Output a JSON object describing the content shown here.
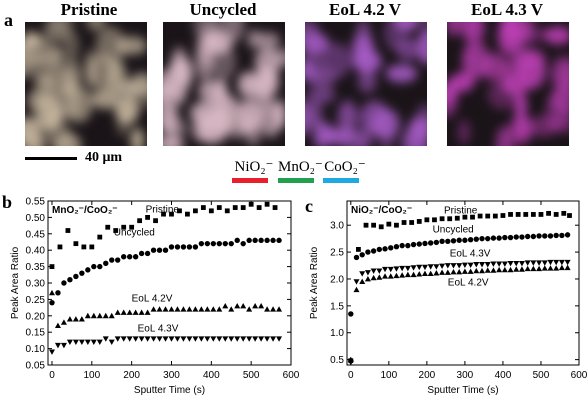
{
  "panel_a": {
    "letter": "a",
    "images": [
      {
        "title": "Pristine",
        "tint": "#c8b8a0"
      },
      {
        "title": "Uncycled",
        "tint": "#d8b8c4"
      },
      {
        "title": "EoL 4.2 V",
        "tint": "#a85cc8"
      },
      {
        "title": "EoL 4.3 V",
        "tint": "#c040b8"
      }
    ],
    "scale_label": "40 μm",
    "legend": [
      {
        "label": "NiO₂⁻",
        "color": "#e8202c"
      },
      {
        "label": "MnO₂⁻",
        "color": "#20a050"
      },
      {
        "label": "CoO₂⁻",
        "color": "#20a8e0"
      }
    ]
  },
  "chart_data": [
    {
      "type": "scatter",
      "panel": "b",
      "title": "MnO₂⁻/CoO₂⁻",
      "xlabel": "Sputter Time (s)",
      "ylabel": "Peak Area Ratio",
      "xlim": [
        -10,
        600
      ],
      "ylim": [
        0.05,
        0.55
      ],
      "xticks": [
        0,
        100,
        200,
        300,
        400,
        500,
        600
      ],
      "yticks": [
        0.05,
        0.1,
        0.15,
        0.2,
        0.25,
        0.3,
        0.35,
        0.4,
        0.45,
        0.5,
        0.55
      ],
      "ytick_labels": [
        "0.05",
        "0.10",
        "0.15",
        "0.20",
        "0.25",
        "0.30",
        "0.35",
        "0.40",
        "0.45",
        "0.50",
        "0.55"
      ],
      "series": [
        {
          "name": "Pristine",
          "marker": "square",
          "x": [
            0,
            20,
            40,
            60,
            80,
            100,
            120,
            140,
            160,
            180,
            200,
            220,
            240,
            260,
            280,
            300,
            320,
            340,
            360,
            380,
            400,
            420,
            440,
            460,
            480,
            500,
            520,
            540,
            560
          ],
          "y": [
            0.35,
            0.41,
            0.46,
            0.42,
            0.41,
            0.41,
            0.44,
            0.47,
            0.46,
            0.47,
            0.47,
            0.49,
            0.5,
            0.49,
            0.51,
            0.51,
            0.52,
            0.51,
            0.52,
            0.53,
            0.52,
            0.53,
            0.52,
            0.53,
            0.53,
            0.54,
            0.53,
            0.54,
            0.53
          ]
        },
        {
          "name": "Uncycled",
          "marker": "circle",
          "x": [
            0,
            15,
            30,
            45,
            60,
            75,
            90,
            105,
            120,
            135,
            150,
            165,
            180,
            195,
            210,
            225,
            240,
            255,
            270,
            285,
            300,
            315,
            330,
            345,
            360,
            375,
            390,
            405,
            420,
            435,
            450,
            465,
            480,
            495,
            510,
            525,
            540,
            555,
            570
          ],
          "y": [
            0.24,
            0.27,
            0.3,
            0.31,
            0.32,
            0.33,
            0.34,
            0.35,
            0.35,
            0.36,
            0.37,
            0.37,
            0.38,
            0.38,
            0.38,
            0.39,
            0.39,
            0.4,
            0.4,
            0.4,
            0.41,
            0.41,
            0.41,
            0.41,
            0.41,
            0.42,
            0.42,
            0.42,
            0.42,
            0.42,
            0.42,
            0.43,
            0.42,
            0.43,
            0.43,
            0.43,
            0.43,
            0.43,
            0.43
          ]
        },
        {
          "name": "EoL 4.2V",
          "marker": "triangle-up",
          "x": [
            0,
            15,
            30,
            45,
            60,
            75,
            90,
            105,
            120,
            135,
            150,
            165,
            180,
            195,
            210,
            225,
            240,
            255,
            270,
            285,
            300,
            315,
            330,
            345,
            360,
            375,
            390,
            405,
            420,
            435,
            450,
            465,
            480,
            495,
            510,
            525,
            540,
            555,
            570
          ],
          "y": [
            0.27,
            0.17,
            0.18,
            0.19,
            0.19,
            0.19,
            0.2,
            0.2,
            0.2,
            0.2,
            0.2,
            0.21,
            0.21,
            0.21,
            0.21,
            0.21,
            0.21,
            0.22,
            0.22,
            0.22,
            0.22,
            0.22,
            0.22,
            0.22,
            0.22,
            0.22,
            0.22,
            0.22,
            0.22,
            0.23,
            0.22,
            0.23,
            0.23,
            0.22,
            0.23,
            0.23,
            0.22,
            0.22,
            0.22
          ]
        },
        {
          "name": "EoL 4.3V",
          "marker": "triangle-down",
          "x": [
            0,
            15,
            30,
            45,
            60,
            75,
            90,
            105,
            120,
            135,
            150,
            165,
            180,
            195,
            210,
            225,
            240,
            255,
            270,
            285,
            300,
            315,
            330,
            345,
            360,
            375,
            390,
            405,
            420,
            435,
            450,
            465,
            480,
            495,
            510,
            525,
            540,
            555,
            570
          ],
          "y": [
            0.09,
            0.11,
            0.11,
            0.12,
            0.12,
            0.12,
            0.12,
            0.12,
            0.12,
            0.13,
            0.12,
            0.13,
            0.13,
            0.13,
            0.13,
            0.13,
            0.13,
            0.13,
            0.13,
            0.13,
            0.13,
            0.13,
            0.13,
            0.13,
            0.13,
            0.13,
            0.13,
            0.13,
            0.13,
            0.13,
            0.13,
            0.13,
            0.13,
            0.13,
            0.13,
            0.13,
            0.13,
            0.13,
            0.13
          ]
        }
      ]
    },
    {
      "type": "scatter",
      "panel": "c",
      "title": "NiO₂⁻/CoO₂⁻",
      "xlabel": "Sputter Time (s)",
      "ylabel": "Peak Area Ratio",
      "xlim": [
        -10,
        600
      ],
      "ylim": [
        0.4,
        3.45
      ],
      "xticks": [
        0,
        100,
        200,
        300,
        400,
        500,
        600
      ],
      "yticks": [
        0.5,
        1.0,
        1.5,
        2.0,
        2.5,
        3.0
      ],
      "ytick_labels": [
        "0.5",
        "1.0",
        "1.5",
        "2.0",
        "2.5",
        "3.0"
      ],
      "series": [
        {
          "name": "Pristine",
          "marker": "square",
          "x": [
            0,
            20,
            40,
            60,
            80,
            100,
            120,
            140,
            160,
            180,
            200,
            220,
            240,
            260,
            280,
            300,
            320,
            340,
            360,
            380,
            400,
            420,
            440,
            460,
            480,
            500,
            520,
            540,
            560,
            575
          ],
          "y": [
            0.48,
            2.55,
            3.0,
            3.0,
            2.97,
            3.02,
            3.0,
            3.05,
            3.05,
            3.07,
            3.1,
            3.1,
            3.12,
            3.12,
            3.13,
            3.15,
            3.15,
            3.17,
            3.17,
            3.17,
            3.18,
            3.2,
            3.2,
            3.2,
            3.2,
            3.2,
            3.22,
            3.2,
            3.22,
            3.18
          ]
        },
        {
          "name": "Uncycled",
          "marker": "circle",
          "x": [
            0,
            15,
            30,
            45,
            60,
            75,
            90,
            105,
            120,
            135,
            150,
            165,
            180,
            195,
            210,
            225,
            240,
            255,
            270,
            285,
            300,
            315,
            330,
            345,
            360,
            375,
            390,
            405,
            420,
            435,
            450,
            465,
            480,
            495,
            510,
            525,
            540,
            555,
            570
          ],
          "y": [
            1.35,
            2.4,
            2.45,
            2.5,
            2.52,
            2.55,
            2.56,
            2.58,
            2.6,
            2.62,
            2.62,
            2.64,
            2.65,
            2.66,
            2.67,
            2.68,
            2.7,
            2.7,
            2.71,
            2.72,
            2.72,
            2.73,
            2.74,
            2.75,
            2.75,
            2.76,
            2.76,
            2.77,
            2.77,
            2.78,
            2.78,
            2.79,
            2.79,
            2.8,
            2.8,
            2.8,
            2.81,
            2.81,
            2.82
          ]
        },
        {
          "name": "EoL 4.3V",
          "marker": "triangle-down",
          "x": [
            0,
            15,
            30,
            45,
            60,
            75,
            90,
            105,
            120,
            135,
            150,
            165,
            180,
            195,
            210,
            225,
            240,
            255,
            270,
            285,
            300,
            315,
            330,
            345,
            360,
            375,
            390,
            405,
            420,
            435,
            450,
            465,
            480,
            495,
            510,
            525,
            540,
            555,
            570
          ],
          "y": [
            0.45,
            1.95,
            2.1,
            2.12,
            2.15,
            2.15,
            2.18,
            2.18,
            2.19,
            2.2,
            2.2,
            2.21,
            2.22,
            2.22,
            2.23,
            2.23,
            2.24,
            2.25,
            2.25,
            2.25,
            2.26,
            2.26,
            2.27,
            2.27,
            2.27,
            2.28,
            2.28,
            2.28,
            2.29,
            2.29,
            2.29,
            2.3,
            2.3,
            2.3,
            2.3,
            2.31,
            2.31,
            2.31,
            2.31
          ]
        },
        {
          "name": "EoL 4.2V",
          "marker": "triangle-up",
          "x": [
            0,
            15,
            30,
            45,
            60,
            75,
            90,
            105,
            120,
            135,
            150,
            165,
            180,
            195,
            210,
            225,
            240,
            255,
            270,
            285,
            300,
            315,
            330,
            345,
            360,
            375,
            390,
            405,
            420,
            435,
            450,
            465,
            480,
            495,
            510,
            525,
            540,
            555,
            570
          ],
          "y": [
            0.5,
            1.8,
            1.95,
            2.0,
            2.02,
            2.03,
            2.05,
            2.05,
            2.06,
            2.07,
            2.08,
            2.08,
            2.09,
            2.1,
            2.1,
            2.11,
            2.12,
            2.12,
            2.13,
            2.13,
            2.14,
            2.14,
            2.15,
            2.15,
            2.16,
            2.16,
            2.17,
            2.17,
            2.17,
            2.18,
            2.18,
            2.19,
            2.19,
            2.19,
            2.2,
            2.2,
            2.2,
            2.21,
            2.21
          ]
        }
      ]
    }
  ]
}
